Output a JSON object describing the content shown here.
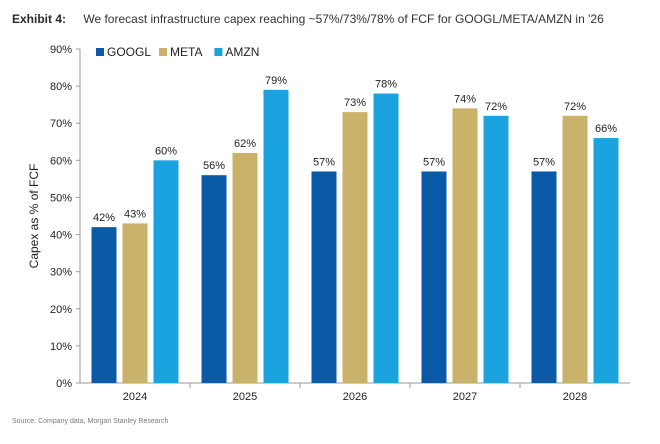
{
  "exhibit_label": "Exhibit 4:",
  "source_note": "Source: Company data, Morgan Stanley Research",
  "colors": {
    "GOOGL": "#0a5aa8",
    "META": "#cbb26a",
    "AMZN": "#1aa3de",
    "axis": "#999999",
    "text": "#222222"
  },
  "chart_data": {
    "type": "bar",
    "title": "We forecast infrastructure capex reaching ~57%/73%/78% of FCF for GOOGL/META/AMZN in '26",
    "xlabel": "",
    "ylabel": "Capex as % of FCF",
    "ylim": [
      0,
      90
    ],
    "yticks": [
      "0%",
      "10%",
      "20%",
      "30%",
      "40%",
      "50%",
      "60%",
      "70%",
      "80%",
      "90%"
    ],
    "legend_position": "top-left",
    "grid": false,
    "categories": [
      "2024",
      "2025",
      "2026",
      "2027",
      "2028"
    ],
    "series": [
      {
        "name": "GOOGL",
        "values": [
          42,
          56,
          57,
          57,
          57
        ],
        "labels": [
          "42%",
          "56%",
          "57%",
          "57%",
          "57%"
        ]
      },
      {
        "name": "META",
        "values": [
          43,
          62,
          73,
          74,
          72
        ],
        "labels": [
          "43%",
          "62%",
          "73%",
          "74%",
          "72%"
        ]
      },
      {
        "name": "AMZN",
        "values": [
          60,
          79,
          78,
          72,
          66
        ],
        "labels": [
          "60%",
          "79%",
          "78%",
          "72%",
          "66%"
        ]
      }
    ]
  }
}
